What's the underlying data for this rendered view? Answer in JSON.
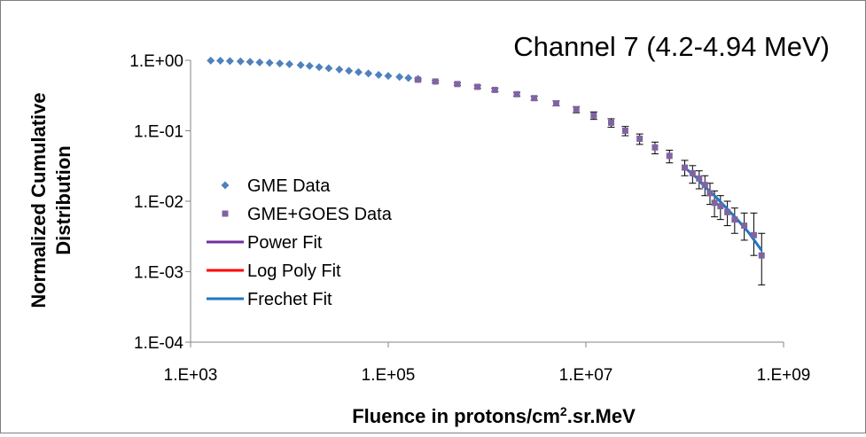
{
  "chart_data": {
    "type": "scatter",
    "title": "Channel 7 (4.2-4.94 MeV)",
    "xlabel": {
      "main": "Fluence in protons/cm",
      "sup": "2",
      "rest": ".sr.MeV"
    },
    "ylabel_lines": [
      "Normalized Cumulative",
      "Distribution"
    ],
    "x_scale": "log",
    "y_scale": "log",
    "xlim": [
      1000,
      1000000000
    ],
    "ylim": [
      0.0001,
      1
    ],
    "x_ticks": [
      {
        "value": 1000,
        "label": "1.E+03"
      },
      {
        "value": 100000,
        "label": "1.E+05"
      },
      {
        "value": 10000000,
        "label": "1.E+07"
      },
      {
        "value": 1000000000,
        "label": "1.E+09"
      }
    ],
    "y_ticks": [
      {
        "value": 1,
        "label": "1.E+00"
      },
      {
        "value": 0.1,
        "label": "1.E-01"
      },
      {
        "value": 0.01,
        "label": "1.E-02"
      },
      {
        "value": 0.001,
        "label": "1.E-03"
      },
      {
        "value": 0.0001,
        "label": "1.E-04"
      }
    ],
    "grid": false,
    "legend_position": "left",
    "series": [
      {
        "name": "GME Data",
        "kind": "points",
        "marker": "diamond",
        "color": "#4f81bd",
        "x": [
          1600,
          2000,
          2500,
          3200,
          4000,
          5000,
          6300,
          8000,
          10000,
          13000,
          16000,
          20000,
          25000,
          32000,
          40000,
          50000,
          63000,
          80000,
          100000,
          130000,
          160000,
          200000
        ],
        "y": [
          0.99,
          0.985,
          0.975,
          0.965,
          0.95,
          0.935,
          0.92,
          0.9,
          0.88,
          0.855,
          0.83,
          0.8,
          0.77,
          0.74,
          0.71,
          0.68,
          0.65,
          0.62,
          0.6,
          0.58,
          0.56,
          0.545
        ]
      },
      {
        "name": "GME+GOES Data",
        "kind": "points_with_errorbars",
        "marker": "square",
        "color": "#8064a2",
        "error_color": "#000000",
        "x": [
          200000,
          300000,
          500000,
          800000,
          1200000,
          2000000,
          3000000,
          5000000,
          8000000,
          12000000,
          18000000,
          25000000,
          35000000,
          50000000,
          70000000,
          100000000,
          120000000,
          140000000,
          160000000,
          180000000,
          200000000,
          230000000,
          270000000,
          320000000,
          400000000,
          500000000,
          600000000
        ],
        "y": [
          0.53,
          0.5,
          0.46,
          0.42,
          0.38,
          0.33,
          0.29,
          0.245,
          0.2,
          0.165,
          0.13,
          0.1,
          0.077,
          0.058,
          0.044,
          0.03,
          0.025,
          0.021,
          0.017,
          0.013,
          0.0095,
          0.0085,
          0.007,
          0.0055,
          0.0045,
          0.0033,
          0.0017
        ],
        "err_low": [
          0.51,
          0.48,
          0.44,
          0.4,
          0.36,
          0.31,
          0.27,
          0.225,
          0.18,
          0.145,
          0.112,
          0.085,
          0.064,
          0.047,
          0.035,
          0.023,
          0.018,
          0.015,
          0.012,
          0.009,
          0.006,
          0.0055,
          0.0045,
          0.0035,
          0.0028,
          0.0017,
          0.00065
        ],
        "err_high": [
          0.55,
          0.52,
          0.48,
          0.44,
          0.4,
          0.35,
          0.31,
          0.265,
          0.22,
          0.185,
          0.148,
          0.115,
          0.09,
          0.069,
          0.053,
          0.038,
          0.032,
          0.027,
          0.023,
          0.018,
          0.014,
          0.012,
          0.01,
          0.008,
          0.0068,
          0.0068,
          0.0035
        ]
      },
      {
        "name": "Power Fit",
        "kind": "line",
        "color": "#7030a0",
        "x": [],
        "y": []
      },
      {
        "name": "Log Poly Fit",
        "kind": "line",
        "color": "#ff0000",
        "x": [],
        "y": []
      },
      {
        "name": "Frechet Fit",
        "kind": "line",
        "color": "#1f77c4",
        "x": [
          100000000,
          130000000,
          160000000,
          200000000,
          260000000,
          340000000,
          450000000,
          600000000
        ],
        "y": [
          0.03,
          0.022,
          0.016,
          0.012,
          0.0082,
          0.0055,
          0.0035,
          0.002
        ]
      }
    ]
  }
}
